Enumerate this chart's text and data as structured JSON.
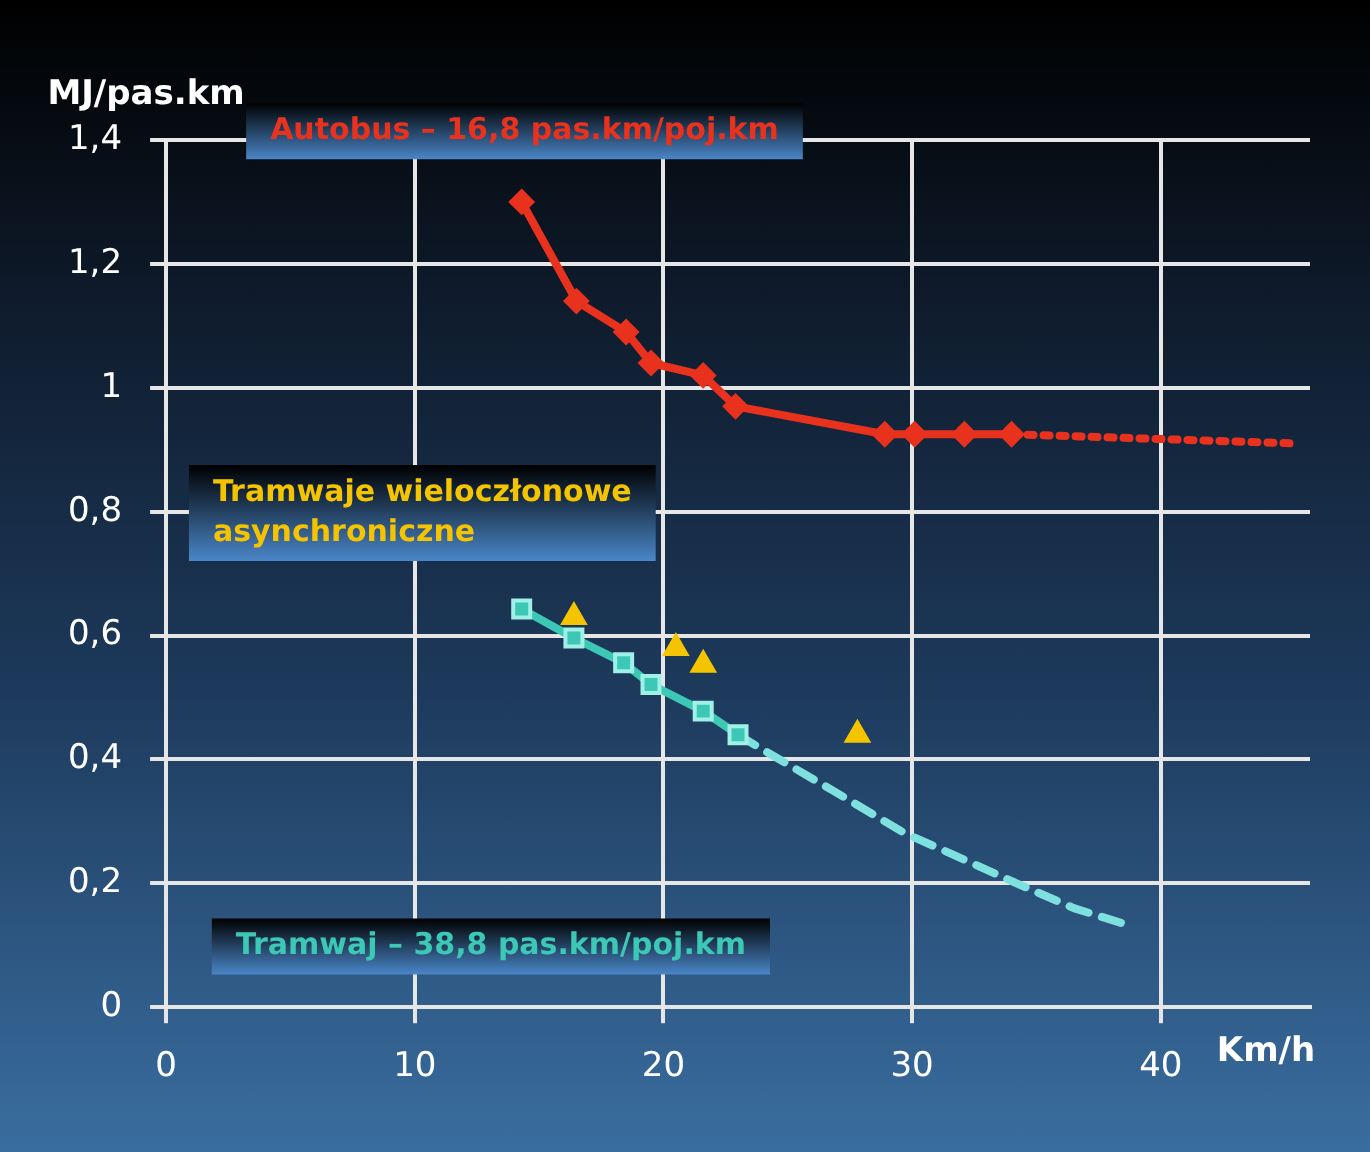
{
  "chart_data": {
    "type": "line",
    "ylabel": "MJ/pas.km",
    "xlabel": "Km/h",
    "xlim": [
      0,
      46
    ],
    "xticks": [
      0,
      10,
      20,
      30,
      40
    ],
    "ylim": [
      0,
      1.4
    ],
    "yticks": [
      0,
      {
        "value": 0.2,
        "label": "0,2"
      },
      {
        "value": 0.4,
        "label": "0,4"
      },
      {
        "value": 0.6,
        "label": "0,6"
      },
      {
        "value": 0.8,
        "label": "0,8"
      },
      1,
      {
        "value": 1.2,
        "label": "1,2"
      },
      {
        "value": 1.4,
        "label": "1,4"
      }
    ],
    "grid": true,
    "legend": false,
    "series": [
      {
        "name": "Autobus – 16,8 pas.km/poj.km",
        "color": "#e8321e",
        "marker": "diamond",
        "line_style": "solid",
        "x": [
          14.3,
          16.5,
          18.5,
          19.5,
          21.6,
          22.9,
          28.9,
          30.1,
          32.1,
          34.0
        ],
        "values": [
          1.3,
          1.14,
          1.09,
          1.04,
          1.02,
          0.97,
          0.925,
          0.925,
          0.925,
          0.925
        ]
      },
      {
        "color": "#e8321e",
        "marker": "none",
        "line_style": "dotted",
        "x": [
          34.0,
          45.5
        ],
        "values": [
          0.925,
          0.91
        ]
      },
      {
        "name": "Tramwaje wieloczłonowe asynchroniczne",
        "type": "scatter",
        "color": "#f5c400",
        "marker": "triangle",
        "x": [
          16.4,
          20.5,
          21.6,
          27.8
        ],
        "values": [
          0.63,
          0.58,
          0.553,
          0.44
        ]
      },
      {
        "name": "Tramwaj – 38,8 pas.km/poj.km",
        "color": "#3cc8b4",
        "marker": "square",
        "line_style": "solid",
        "x": [
          14.3,
          16.4,
          18.4,
          19.5,
          21.6,
          23.0
        ],
        "values": [
          0.643,
          0.596,
          0.556,
          0.521,
          0.478,
          0.44
        ]
      },
      {
        "color": "#7fe0e0",
        "marker": "none",
        "line_style": "dashed",
        "x": [
          23.0,
          23.9,
          26.8,
          29.7,
          32.0,
          34.2,
          36.5,
          38.8
        ],
        "values": [
          0.44,
          0.418,
          0.35,
          0.281,
          0.24,
          0.2,
          0.16,
          0.131
        ]
      }
    ]
  }
}
